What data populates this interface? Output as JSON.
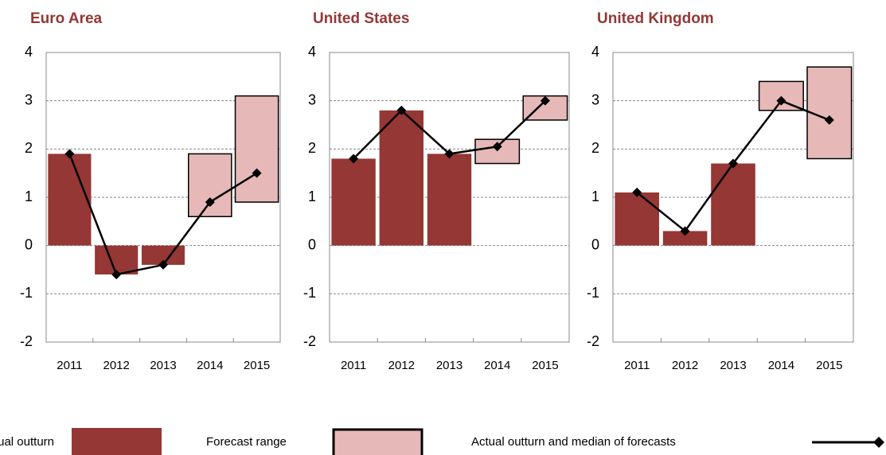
{
  "chart_data": [
    {
      "type": "combo",
      "title": "Euro Area",
      "categories": [
        "2011",
        "2012",
        "2013",
        "2014",
        "2015"
      ],
      "outturn": [
        1.9,
        -0.6,
        -0.4,
        null,
        null
      ],
      "forecast_low": [
        null,
        null,
        null,
        0.6,
        0.9
      ],
      "forecast_high": [
        null,
        null,
        null,
        1.9,
        3.1
      ],
      "median": [
        1.9,
        -0.6,
        -0.4,
        0.9,
        1.5
      ],
      "ylim": [
        -2,
        4
      ],
      "yticks": [
        -2,
        -1,
        0,
        1,
        2,
        3,
        4
      ],
      "grid": true
    },
    {
      "type": "combo",
      "title": "United States",
      "categories": [
        "2011",
        "2012",
        "2013",
        "2014",
        "2015"
      ],
      "outturn": [
        1.8,
        2.8,
        1.9,
        null,
        null
      ],
      "forecast_low": [
        null,
        null,
        null,
        1.7,
        2.6
      ],
      "forecast_high": [
        null,
        null,
        null,
        2.2,
        3.1
      ],
      "median": [
        1.8,
        2.8,
        1.9,
        2.05,
        3.0
      ],
      "ylim": [
        -2,
        4
      ],
      "yticks": [
        -2,
        -1,
        0,
        1,
        2,
        3,
        4
      ],
      "grid": true
    },
    {
      "type": "combo",
      "title": "United Kingdom",
      "categories": [
        "2011",
        "2012",
        "2013",
        "2014",
        "2015"
      ],
      "outturn": [
        1.1,
        0.3,
        1.7,
        null,
        null
      ],
      "forecast_low": [
        null,
        null,
        null,
        2.8,
        1.8
      ],
      "forecast_high": [
        null,
        null,
        null,
        3.4,
        3.7
      ],
      "median": [
        1.1,
        0.3,
        1.7,
        3.0,
        2.6
      ],
      "ylim": [
        -2,
        4
      ],
      "yticks": [
        -2,
        -1,
        0,
        1,
        2,
        3,
        4
      ],
      "grid": true
    }
  ],
  "legend": [
    {
      "name": "Actual outturn",
      "color": "#953735"
    },
    {
      "name": "Forecast range",
      "color": "#e6b9b8"
    },
    {
      "name": "Actual outturn and median of forecasts",
      "color": "#000000"
    }
  ]
}
